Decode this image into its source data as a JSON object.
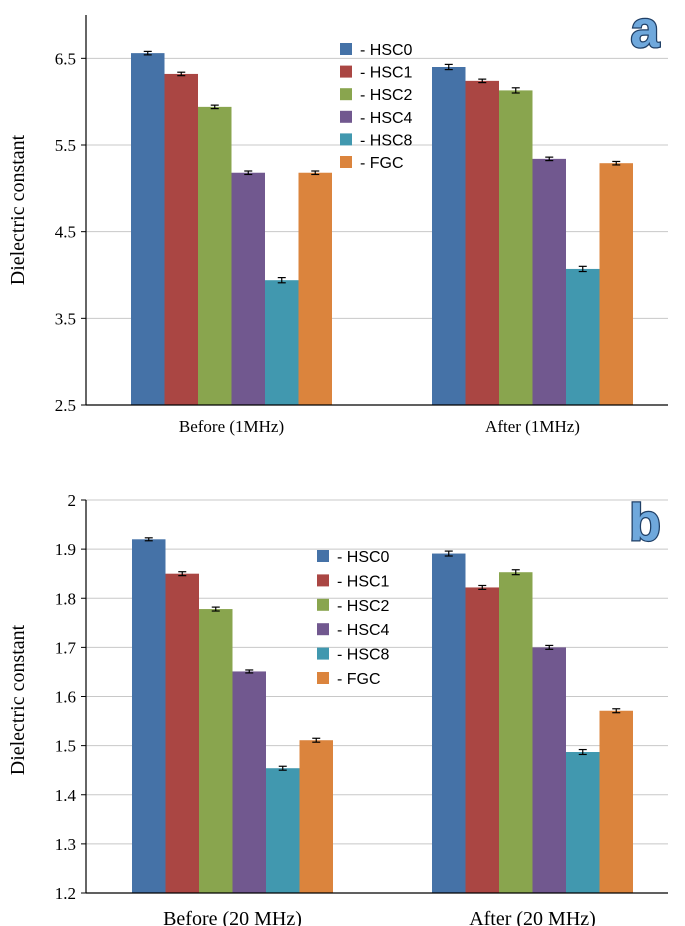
{
  "colors": {
    "HSC0": "#4572a7",
    "HSC1": "#aa4643",
    "HSC2": "#89a54e",
    "HSC4": "#71588f",
    "HSC8": "#4198af",
    "FGC": "#db843d",
    "panel_letter_fill": "#6fa8dc",
    "panel_letter_stroke": "#1f3f66"
  },
  "chart_data": [
    {
      "type": "bar",
      "panel": "a",
      "ylabel": "Dielectric constant",
      "xlabel": "",
      "ylim": [
        2.5,
        7.0
      ],
      "yticks": [
        2.5,
        3.5,
        4.5,
        5.5,
        6.5
      ],
      "ytick_labels": [
        "2.5",
        "3.5",
        "4.5",
        "5.5",
        "6.5"
      ],
      "grid": true,
      "legend_position": "top-center",
      "categories": [
        "Before (1MHz)",
        "After (1MHz)"
      ],
      "series": [
        {
          "name": "HSC0",
          "legend": "- HSC0",
          "values": [
            6.56,
            6.4
          ],
          "errors": [
            0.02,
            0.03
          ]
        },
        {
          "name": "HSC1",
          "legend": "- HSC1",
          "values": [
            6.32,
            6.24
          ],
          "errors": [
            0.02,
            0.02
          ]
        },
        {
          "name": "HSC2",
          "legend": "- HSC2",
          "values": [
            5.94,
            6.13
          ],
          "errors": [
            0.02,
            0.03
          ]
        },
        {
          "name": "HSC4",
          "legend": "- HSC4",
          "values": [
            5.18,
            5.34
          ],
          "errors": [
            0.02,
            0.02
          ]
        },
        {
          "name": "HSC8",
          "legend": "- HSC8",
          "values": [
            3.94,
            4.07
          ],
          "errors": [
            0.03,
            0.03
          ]
        },
        {
          "name": "FGC",
          "legend": "- FGC",
          "values": [
            5.18,
            5.29
          ],
          "errors": [
            0.02,
            0.02
          ]
        }
      ]
    },
    {
      "type": "bar",
      "panel": "b",
      "ylabel": "Dielectric constant",
      "xlabel": "",
      "ylim": [
        1.2,
        2.0
      ],
      "yticks": [
        1.2,
        1.3,
        1.4,
        1.5,
        1.6,
        1.7,
        1.8,
        1.9,
        2.0
      ],
      "ytick_labels": [
        "1.2",
        "1.3",
        "1.4",
        "1.5",
        "1.6",
        "1.7",
        "1.8",
        "1.9",
        "2"
      ],
      "grid": true,
      "legend_position": "top-center",
      "categories": [
        "Before (20 MHz)",
        "After (20 MHz)"
      ],
      "series": [
        {
          "name": "HSC0",
          "legend": "- HSC0",
          "values": [
            1.92,
            1.891
          ],
          "errors": [
            0.003,
            0.005
          ]
        },
        {
          "name": "HSC1",
          "legend": "- HSC1",
          "values": [
            1.85,
            1.822
          ],
          "errors": [
            0.004,
            0.004
          ]
        },
        {
          "name": "HSC2",
          "legend": "- HSC2",
          "values": [
            1.778,
            1.853
          ],
          "errors": [
            0.004,
            0.005
          ]
        },
        {
          "name": "HSC4",
          "legend": "- HSC4",
          "values": [
            1.651,
            1.7
          ],
          "errors": [
            0.003,
            0.004
          ]
        },
        {
          "name": "HSC8",
          "legend": "- HSC8",
          "values": [
            1.454,
            1.487
          ],
          "errors": [
            0.004,
            0.005
          ]
        },
        {
          "name": "FGC",
          "legend": "- FGC",
          "values": [
            1.511,
            1.571
          ],
          "errors": [
            0.004,
            0.004
          ]
        }
      ]
    }
  ]
}
